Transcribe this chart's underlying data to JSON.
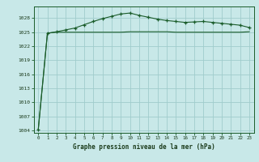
{
  "title": "Graphe pression niveau de la mer (hPa)",
  "background_color": "#c8e8e8",
  "grid_color": "#a0cccc",
  "line_color": "#1a5c2a",
  "marker_color": "#1a5c2a",
  "xlim": [
    -0.5,
    23.5
  ],
  "ylim": [
    1003.5,
    1030.5
  ],
  "yticks": [
    1004,
    1007,
    1010,
    1013,
    1016,
    1019,
    1022,
    1025,
    1028
  ],
  "xticks": [
    0,
    1,
    2,
    3,
    4,
    5,
    6,
    7,
    8,
    9,
    10,
    11,
    12,
    13,
    14,
    15,
    16,
    17,
    18,
    19,
    20,
    21,
    22,
    23
  ],
  "x": [
    0,
    1,
    2,
    3,
    4,
    5,
    6,
    7,
    8,
    9,
    10,
    11,
    12,
    13,
    14,
    15,
    16,
    17,
    18,
    19,
    20,
    21,
    22,
    23
  ],
  "y_upper": [
    1004.2,
    1024.8,
    1025.1,
    1025.5,
    1025.9,
    1026.6,
    1027.3,
    1027.9,
    1028.4,
    1028.9,
    1029.1,
    1028.6,
    1028.2,
    1027.8,
    1027.5,
    1027.3,
    1027.1,
    1027.2,
    1027.3,
    1027.1,
    1026.9,
    1026.7,
    1026.5,
    1026.0
  ],
  "y_lower": [
    1004.2,
    1024.8,
    1025.0,
    1025.0,
    1025.0,
    1025.0,
    1025.0,
    1025.0,
    1025.0,
    1025.0,
    1025.1,
    1025.1,
    1025.1,
    1025.1,
    1025.1,
    1025.0,
    1025.0,
    1025.0,
    1025.0,
    1025.0,
    1025.0,
    1025.0,
    1025.0,
    1025.1
  ]
}
